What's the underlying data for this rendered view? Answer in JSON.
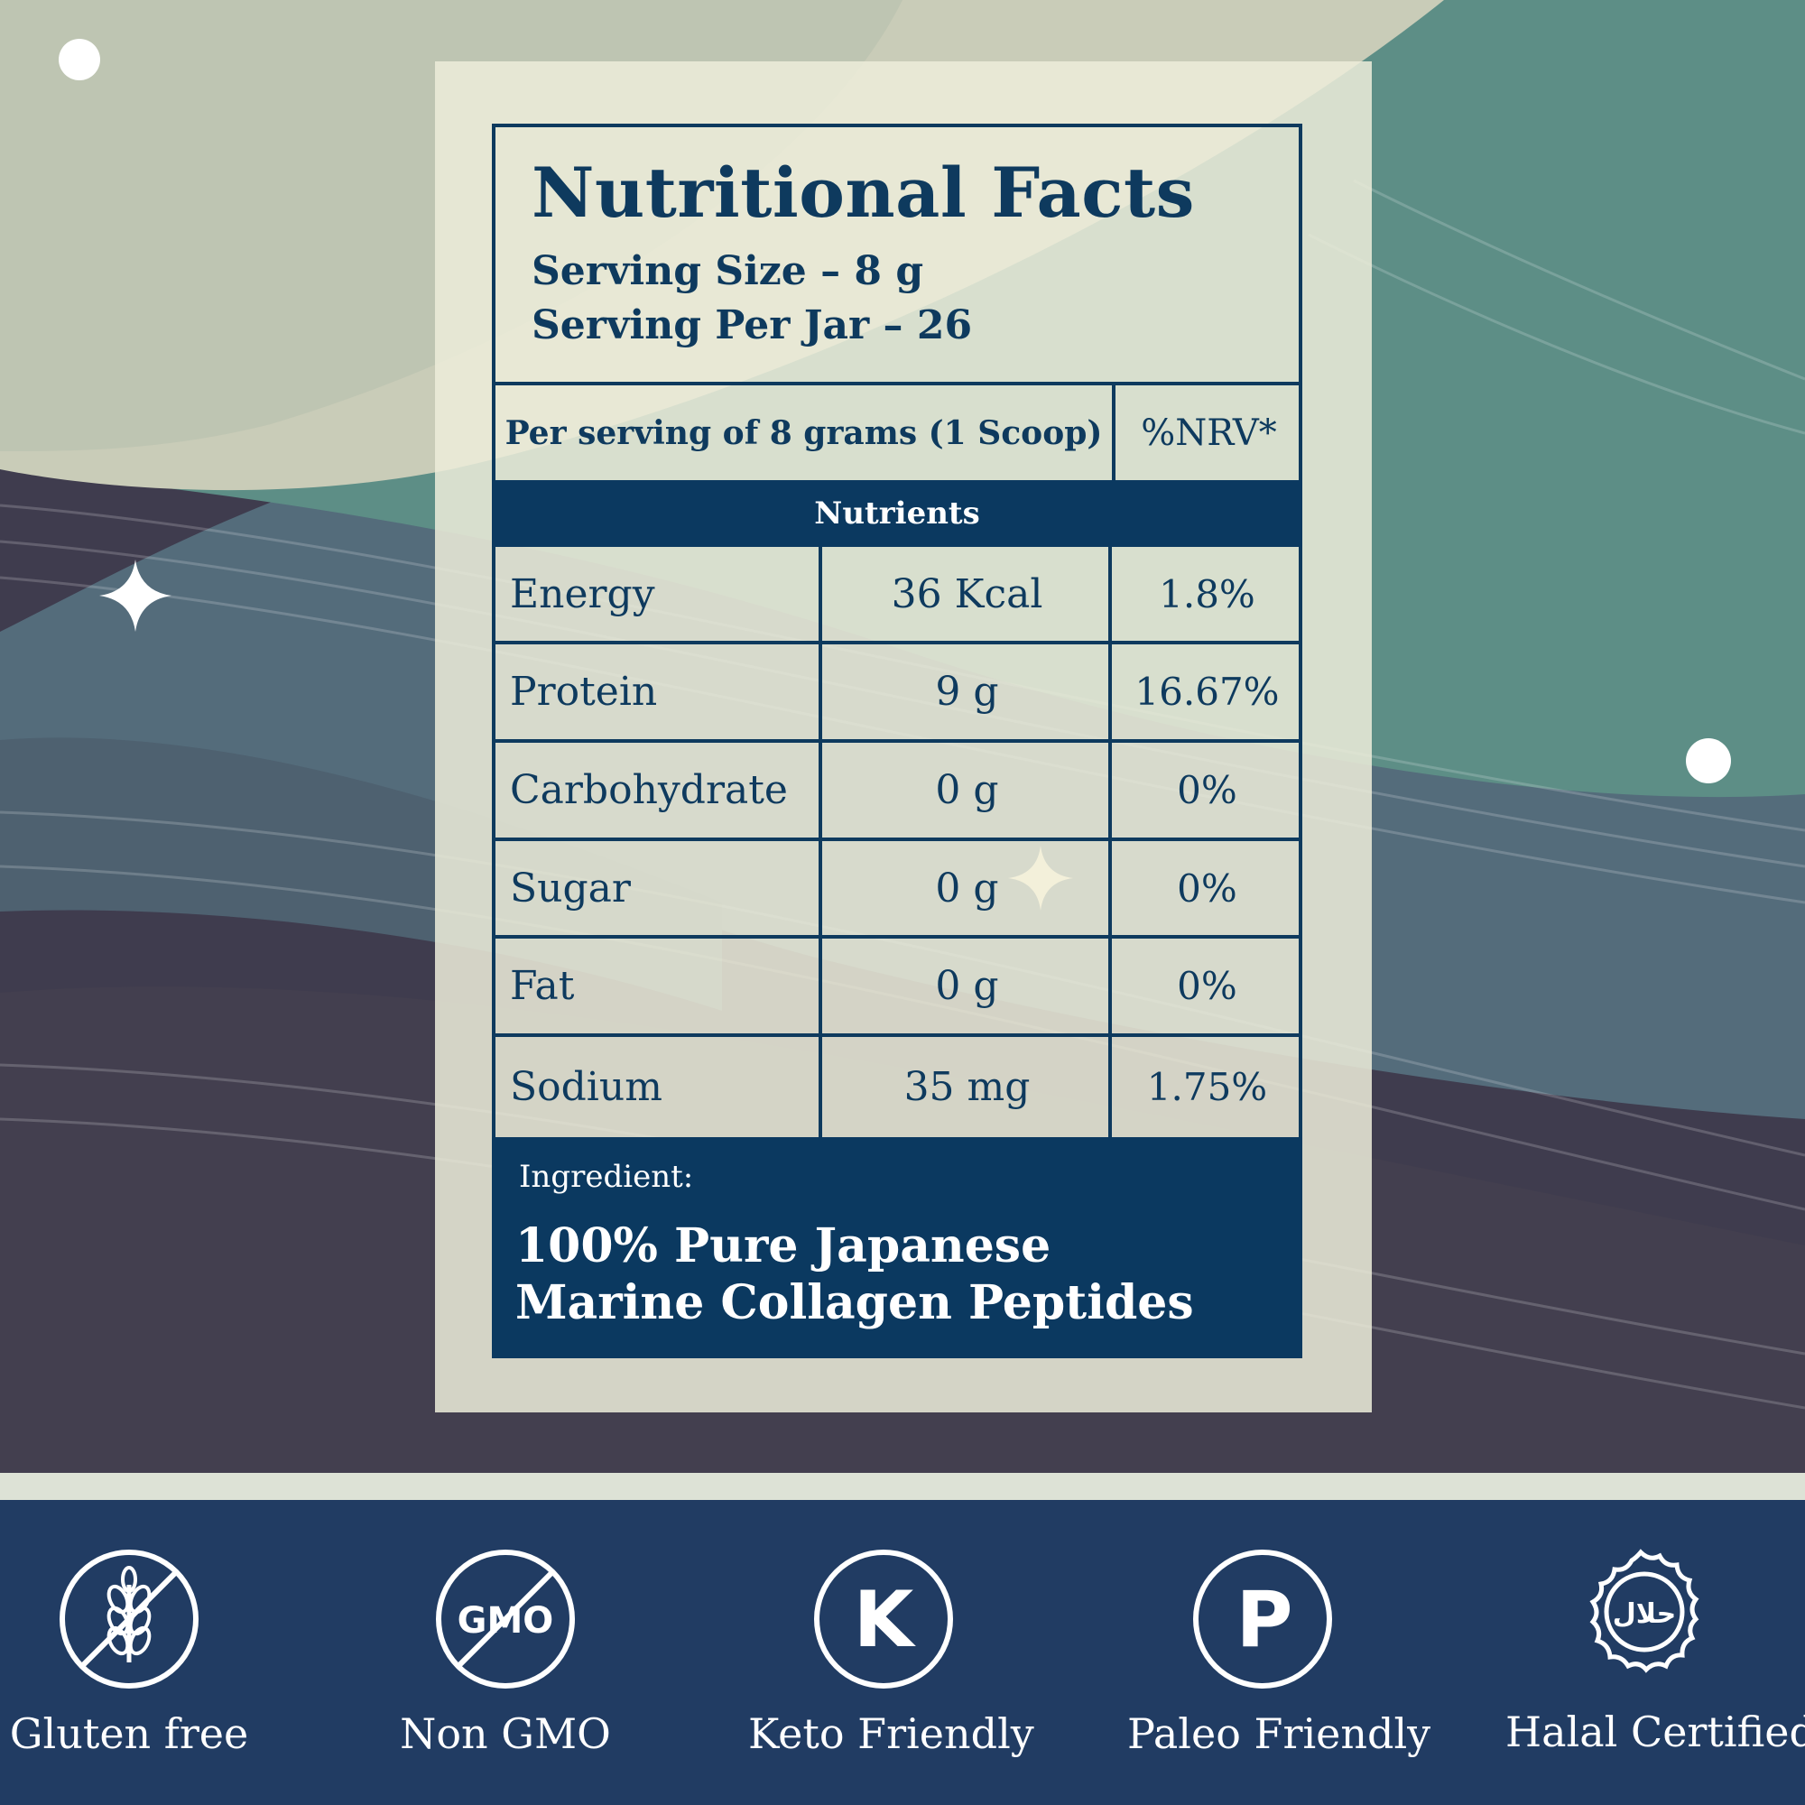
{
  "colors": {
    "navy": "#0b3960",
    "band": "#213c63",
    "teal": "#5d8f86",
    "panel": "#ecebd9"
  },
  "facts": {
    "title": "Nutritional Facts",
    "serving_size": "Serving Size – 8 g",
    "serving_per_jar": "Serving Per Jar – 26",
    "per_serving_label": "Per serving of 8 grams (1 Scoop)",
    "nrv_header": "%NRV*",
    "nutrients_header": "Nutrients",
    "rows": [
      {
        "name": "Energy",
        "amount": "36 Kcal",
        "nrv": "1.8%"
      },
      {
        "name": "Protein",
        "amount": "9 g",
        "nrv": "16.67%"
      },
      {
        "name": "Carbohydrate",
        "amount": "0 g",
        "nrv": "0%"
      },
      {
        "name": "Sugar",
        "amount": "0 g",
        "nrv": "0%"
      },
      {
        "name": "Fat",
        "amount": "0 g",
        "nrv": "0%"
      },
      {
        "name": "Sodium",
        "amount": "35 mg",
        "nrv": "1.75%"
      }
    ],
    "ingredient_label": "Ingredient:",
    "ingredient_line1": "100% Pure Japanese",
    "ingredient_line2": "Marine Collagen Peptides"
  },
  "badges": [
    {
      "icon": "no-wheat-icon",
      "label": "Gluten free"
    },
    {
      "icon": "no-gmo-icon",
      "label": "Non GMO",
      "icon_text": "GMO"
    },
    {
      "icon": "keto-k-icon",
      "label": "Keto Friendly",
      "icon_text": "K"
    },
    {
      "icon": "paleo-p-icon",
      "label": "Paleo Friendly",
      "icon_text": "P"
    },
    {
      "icon": "halal-seal-icon",
      "label": "Halal Certified",
      "icon_text": "حلال"
    }
  ]
}
